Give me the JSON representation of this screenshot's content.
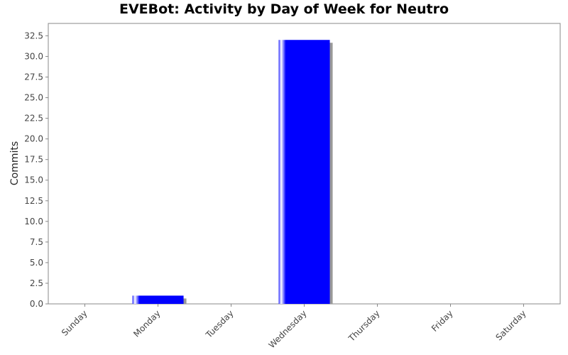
{
  "chart_data": {
    "type": "bar",
    "title": "EVEBot: Activity by Day of Week for Neutro",
    "xlabel": "",
    "ylabel": "Commits",
    "categories": [
      "Sunday",
      "Monday",
      "Tuesday",
      "Wednesday",
      "Thursday",
      "Friday",
      "Saturday"
    ],
    "values": [
      0,
      1,
      0,
      32,
      0,
      0,
      0
    ],
    "yticks": [
      "0.0",
      "2.5",
      "5.0",
      "7.5",
      "10.0",
      "12.5",
      "15.0",
      "17.5",
      "20.0",
      "22.5",
      "25.0",
      "27.5",
      "30.0",
      "32.5"
    ],
    "ylim": [
      0,
      34
    ],
    "grid": false,
    "legend": "none",
    "bar_color": "#0000ff",
    "shadow_color": "#999999"
  }
}
